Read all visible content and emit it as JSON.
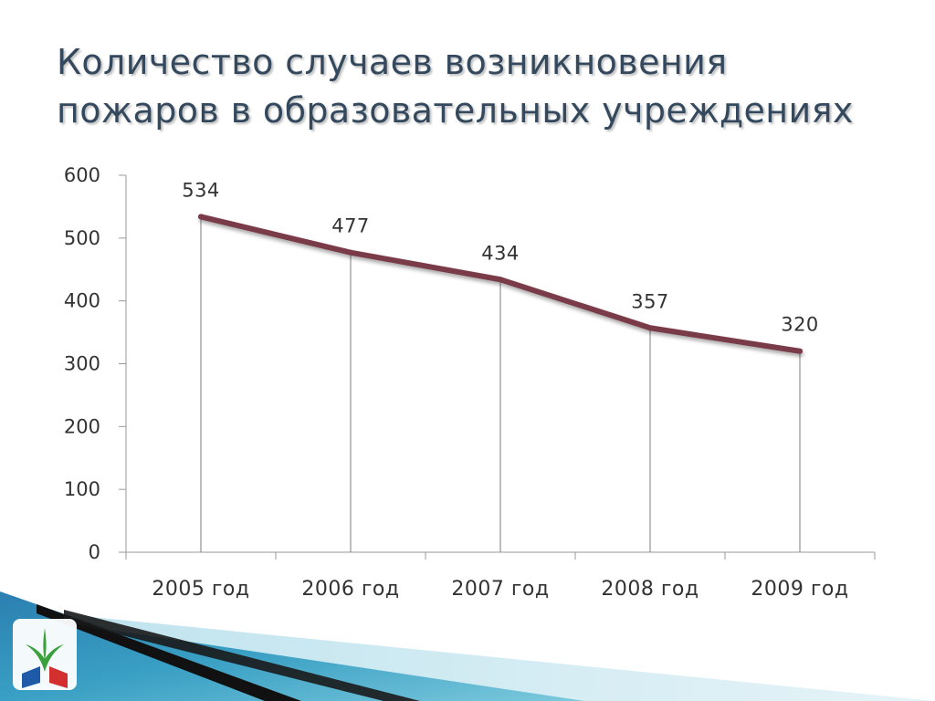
{
  "title_lines": [
    "Количество случаев возникновения",
    "пожаров в образовательных учреждениях"
  ],
  "logo": {
    "icon": "union-emblem-icon"
  },
  "chart_data": {
    "type": "line",
    "categories": [
      "2005 год",
      "2006 год",
      "2007 год",
      "2008 год",
      "2009 год"
    ],
    "values": [
      534,
      477,
      434,
      357,
      320
    ],
    "data_labels": [
      "534",
      "477",
      "434",
      "357",
      "320"
    ],
    "title": "",
    "xlabel": "",
    "ylabel": "",
    "ylim": [
      0,
      600
    ],
    "yticks": [
      0,
      100,
      200,
      300,
      400,
      500,
      600
    ],
    "ytick_labels": [
      "0",
      "100",
      "200",
      "300",
      "400",
      "500",
      "600"
    ],
    "drop_lines": true,
    "grid": false,
    "legend": "none",
    "line_color": "#7a3a48"
  }
}
